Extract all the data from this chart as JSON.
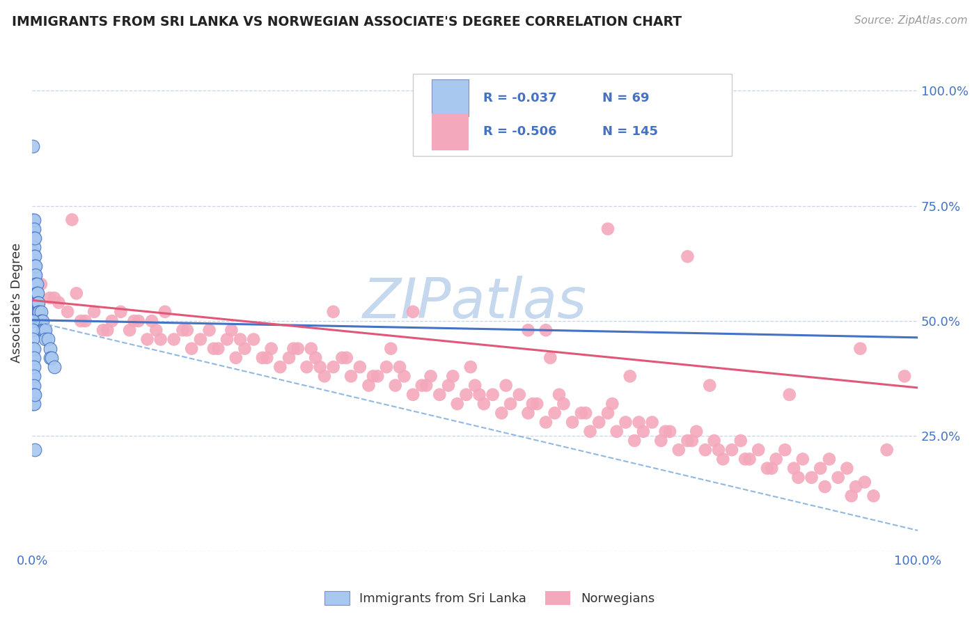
{
  "title": "IMMIGRANTS FROM SRI LANKA VS NORWEGIAN ASSOCIATE'S DEGREE CORRELATION CHART",
  "source": "Source: ZipAtlas.com",
  "ylabel": "Associate's Degree",
  "xlim": [
    0.0,
    1.0
  ],
  "ylim": [
    0.0,
    1.08
  ],
  "ytick_vals": [
    0.0,
    0.25,
    0.5,
    0.75,
    1.0
  ],
  "ytick_labels_right": [
    "",
    "25.0%",
    "50.0%",
    "75.0%",
    "100.0%"
  ],
  "blue_R": -0.037,
  "blue_N": 69,
  "pink_R": -0.506,
  "pink_N": 145,
  "blue_color": "#A8C8F0",
  "pink_color": "#F4A8BC",
  "blue_line_color": "#4472C4",
  "pink_line_color": "#E05878",
  "dashed_line_color": "#90B8E0",
  "watermark": "ZIPatlas",
  "watermark_color": "#C5D8EE",
  "legend_label_blue": "Immigrants from Sri Lanka",
  "legend_label_pink": "Norwegians",
  "blue_scatter_x": [
    0.001,
    0.001,
    0.001,
    0.001,
    0.001,
    0.002,
    0.002,
    0.002,
    0.002,
    0.002,
    0.002,
    0.002,
    0.002,
    0.002,
    0.002,
    0.003,
    0.003,
    0.003,
    0.003,
    0.003,
    0.003,
    0.003,
    0.004,
    0.004,
    0.004,
    0.004,
    0.004,
    0.005,
    0.005,
    0.005,
    0.006,
    0.006,
    0.006,
    0.007,
    0.007,
    0.008,
    0.008,
    0.009,
    0.01,
    0.01,
    0.012,
    0.012,
    0.013,
    0.015,
    0.015,
    0.018,
    0.02,
    0.02,
    0.022,
    0.025,
    0.001,
    0.001,
    0.001,
    0.001,
    0.001,
    0.001,
    0.001,
    0.001,
    0.001,
    0.001,
    0.002,
    0.002,
    0.002,
    0.002,
    0.002,
    0.002,
    0.002,
    0.003,
    0.003
  ],
  "blue_scatter_y": [
    0.88,
    0.72,
    0.7,
    0.68,
    0.65,
    0.72,
    0.7,
    0.68,
    0.66,
    0.64,
    0.62,
    0.6,
    0.58,
    0.56,
    0.54,
    0.68,
    0.64,
    0.62,
    0.6,
    0.58,
    0.56,
    0.54,
    0.62,
    0.6,
    0.58,
    0.56,
    0.54,
    0.58,
    0.56,
    0.54,
    0.56,
    0.54,
    0.52,
    0.54,
    0.52,
    0.52,
    0.5,
    0.5,
    0.52,
    0.5,
    0.5,
    0.48,
    0.48,
    0.48,
    0.46,
    0.46,
    0.44,
    0.42,
    0.42,
    0.4,
    0.5,
    0.48,
    0.46,
    0.44,
    0.42,
    0.4,
    0.38,
    0.36,
    0.34,
    0.32,
    0.44,
    0.42,
    0.4,
    0.38,
    0.36,
    0.34,
    0.32,
    0.34,
    0.22
  ],
  "pink_scatter_x": [
    0.01,
    0.02,
    0.03,
    0.04,
    0.05,
    0.06,
    0.07,
    0.08,
    0.09,
    0.1,
    0.11,
    0.12,
    0.13,
    0.14,
    0.15,
    0.16,
    0.17,
    0.18,
    0.19,
    0.2,
    0.21,
    0.22,
    0.23,
    0.24,
    0.25,
    0.26,
    0.27,
    0.28,
    0.29,
    0.3,
    0.31,
    0.32,
    0.33,
    0.34,
    0.35,
    0.36,
    0.37,
    0.38,
    0.39,
    0.4,
    0.41,
    0.42,
    0.43,
    0.44,
    0.45,
    0.46,
    0.47,
    0.48,
    0.49,
    0.5,
    0.51,
    0.52,
    0.53,
    0.54,
    0.55,
    0.56,
    0.57,
    0.58,
    0.59,
    0.6,
    0.61,
    0.62,
    0.63,
    0.64,
    0.65,
    0.66,
    0.67,
    0.68,
    0.69,
    0.7,
    0.71,
    0.72,
    0.73,
    0.74,
    0.75,
    0.76,
    0.77,
    0.78,
    0.79,
    0.8,
    0.81,
    0.82,
    0.83,
    0.84,
    0.85,
    0.86,
    0.87,
    0.88,
    0.89,
    0.9,
    0.91,
    0.92,
    0.93,
    0.94,
    0.95,
    0.025,
    0.055,
    0.085,
    0.115,
    0.145,
    0.175,
    0.205,
    0.235,
    0.265,
    0.295,
    0.325,
    0.355,
    0.385,
    0.415,
    0.445,
    0.475,
    0.505,
    0.535,
    0.565,
    0.595,
    0.625,
    0.655,
    0.685,
    0.715,
    0.745,
    0.775,
    0.805,
    0.835,
    0.865,
    0.895,
    0.925,
    0.045,
    0.135,
    0.225,
    0.315,
    0.405,
    0.495,
    0.585,
    0.675,
    0.765,
    0.855,
    0.935,
    0.965,
    0.985,
    0.56,
    0.65,
    0.74,
    0.58,
    0.43,
    0.34
  ],
  "pink_scatter_y": [
    0.58,
    0.55,
    0.54,
    0.52,
    0.56,
    0.5,
    0.52,
    0.48,
    0.5,
    0.52,
    0.48,
    0.5,
    0.46,
    0.48,
    0.52,
    0.46,
    0.48,
    0.44,
    0.46,
    0.48,
    0.44,
    0.46,
    0.42,
    0.44,
    0.46,
    0.42,
    0.44,
    0.4,
    0.42,
    0.44,
    0.4,
    0.42,
    0.38,
    0.4,
    0.42,
    0.38,
    0.4,
    0.36,
    0.38,
    0.4,
    0.36,
    0.38,
    0.34,
    0.36,
    0.38,
    0.34,
    0.36,
    0.32,
    0.34,
    0.36,
    0.32,
    0.34,
    0.3,
    0.32,
    0.34,
    0.3,
    0.32,
    0.28,
    0.3,
    0.32,
    0.28,
    0.3,
    0.26,
    0.28,
    0.3,
    0.26,
    0.28,
    0.24,
    0.26,
    0.28,
    0.24,
    0.26,
    0.22,
    0.24,
    0.26,
    0.22,
    0.24,
    0.2,
    0.22,
    0.24,
    0.2,
    0.22,
    0.18,
    0.2,
    0.22,
    0.18,
    0.2,
    0.16,
    0.18,
    0.2,
    0.16,
    0.18,
    0.14,
    0.15,
    0.12,
    0.55,
    0.5,
    0.48,
    0.5,
    0.46,
    0.48,
    0.44,
    0.46,
    0.42,
    0.44,
    0.4,
    0.42,
    0.38,
    0.4,
    0.36,
    0.38,
    0.34,
    0.36,
    0.32,
    0.34,
    0.3,
    0.32,
    0.28,
    0.26,
    0.24,
    0.22,
    0.2,
    0.18,
    0.16,
    0.14,
    0.12,
    0.72,
    0.5,
    0.48,
    0.44,
    0.44,
    0.4,
    0.42,
    0.38,
    0.36,
    0.34,
    0.44,
    0.22,
    0.38,
    0.48,
    0.7,
    0.64,
    0.48,
    0.52,
    0.52
  ]
}
